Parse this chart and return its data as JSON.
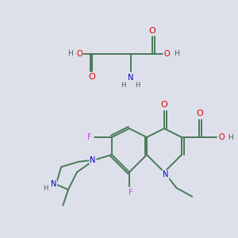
{
  "background_color": "#dde0ea",
  "bond_color": "#4a7a5a",
  "bond_width": 1.4,
  "atom_colors": {
    "O": "#dd0000",
    "N": "#0000bb",
    "F": "#cc44cc",
    "H": "#555555",
    "C": "#4a7a5a"
  },
  "font_size": 7.0
}
